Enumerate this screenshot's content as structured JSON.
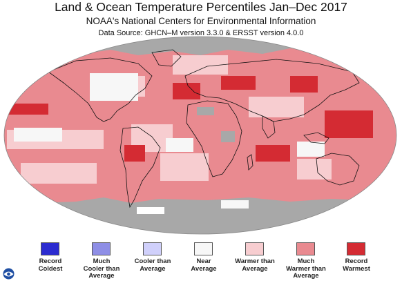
{
  "header": {
    "title": "Land & Ocean Temperature Percentiles Jan–Dec 2017",
    "subtitle": "NOAA's National Centers for Environmental Information",
    "source": "Data Source: GHCN–M version 3.3.0 & ERSST version 4.0.0"
  },
  "colors": {
    "record_coldest": "#2b2bd0",
    "much_cooler": "#8e8ee6",
    "cooler": "#d0d0fb",
    "near_average": "#f7f7f7",
    "warmer": "#f7cdd0",
    "much_warmer": "#e98a90",
    "record_warmest": "#d42b33",
    "no_data": "#a8a8a8",
    "coast": "#111111"
  },
  "legend": [
    {
      "label": "Record\nColdest",
      "color": "#2b2bd0"
    },
    {
      "label": "Much\nCooler than\nAverage",
      "color": "#8e8ee6"
    },
    {
      "label": "Cooler than\nAverage",
      "color": "#d0d0fb"
    },
    {
      "label": "Near\nAverage",
      "color": "#f7f7f7"
    },
    {
      "label": "Warmer than\nAverage",
      "color": "#f7cdd0"
    },
    {
      "label": "Much\nWarmer than\nAverage",
      "color": "#e98a90"
    },
    {
      "label": "Record\nWarmest",
      "color": "#d42b33"
    }
  ],
  "logo": {
    "text": "NOAA",
    "icon": "noaa-logo-icon"
  }
}
